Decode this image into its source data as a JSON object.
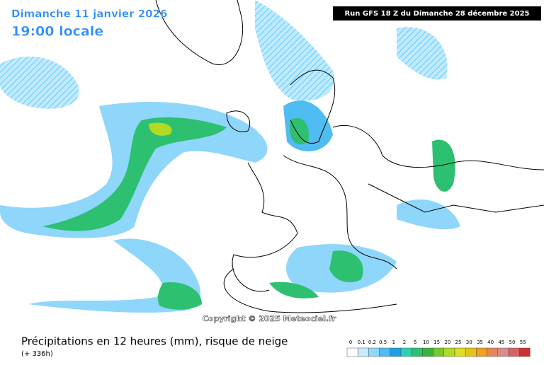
{
  "header": {
    "date": "Dimanche 11 janvier 2026",
    "time": "19:00 locale",
    "run": "Run GFS 18 Z du Dimanche 28 décembre 2025"
  },
  "copyright": "Copyright © 2025 Meteociel.fr",
  "footer": {
    "title": "Précipitations en 12 heures (mm), risque de neige",
    "lead": "(+ 336h)"
  },
  "legend": [
    {
      "label": "0",
      "color": "#ffffff"
    },
    {
      "label": "0.1",
      "color": "#c8ecff"
    },
    {
      "label": "0.2",
      "color": "#8fd6fb"
    },
    {
      "label": "0.5",
      "color": "#4fbcf2"
    },
    {
      "label": "1",
      "color": "#1f9ee4"
    },
    {
      "label": "2",
      "color": "#2ad0b0"
    },
    {
      "label": "5",
      "color": "#2cc070"
    },
    {
      "label": "10",
      "color": "#38b43a"
    },
    {
      "label": "15",
      "color": "#78c82a"
    },
    {
      "label": "20",
      "color": "#b2da22"
    },
    {
      "label": "25",
      "color": "#dede22"
    },
    {
      "label": "30",
      "color": "#e6c21c"
    },
    {
      "label": "35",
      "color": "#f0a01a"
    },
    {
      "label": "40",
      "color": "#e8865a"
    },
    {
      "label": "45",
      "color": "#d88c8c"
    },
    {
      "label": "50",
      "color": "#d46464"
    },
    {
      "label": "55",
      "color": "#c83232"
    }
  ]
}
